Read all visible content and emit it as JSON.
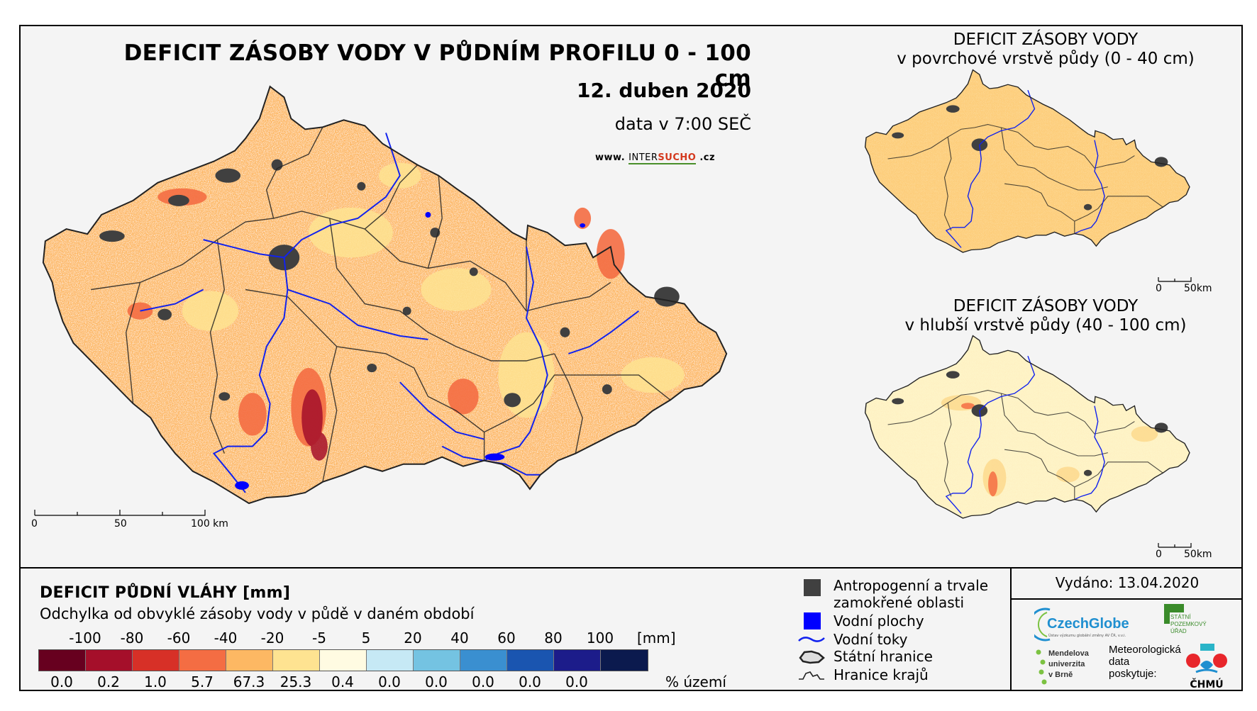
{
  "main_map": {
    "title": "DEFICIT ZÁSOBY VODY V PŮDNÍM PROFILU 0 - 100 cm",
    "date": "12. duben 2020",
    "data_time": "data v 7:00 SEČ",
    "website_prefix": "www. ",
    "website_brand_a": "INTER",
    "website_brand_b": "SUCHO",
    "website_suffix": " .cz",
    "scale_labels": [
      "0",
      "50",
      "100 km"
    ]
  },
  "inset_top": {
    "title_line1": "DEFICIT ZÁSOBY VODY",
    "title_line2": "v povrchové vrstvě půdy (0 - 40 cm)",
    "scale_labels": [
      "0",
      "50km"
    ]
  },
  "inset_bottom": {
    "title_line1": "DEFICIT ZÁSOBY VODY",
    "title_line2": "v hlubší vrstvě půdy (40 - 100 cm)",
    "scale_labels": [
      "0",
      "50km"
    ]
  },
  "legend": {
    "title": "DEFICIT PŮDNÍ VLÁHY [mm]",
    "subtitle": "Odchylka od obvyklé zásoby vody v půdě v daném období",
    "ticks": [
      "-100",
      "-80",
      "-60",
      "-40",
      "-20",
      "-5",
      "5",
      "20",
      "40",
      "60",
      "80",
      "100"
    ],
    "unit": "[mm]",
    "classes": [
      {
        "color": "#67001f",
        "percent": "0.0"
      },
      {
        "color": "#a50f2a",
        "percent": "0.2"
      },
      {
        "color": "#d73027",
        "percent": "1.0"
      },
      {
        "color": "#f46d43",
        "percent": "5.7"
      },
      {
        "color": "#fdb863",
        "percent": "67.3"
      },
      {
        "color": "#fee391",
        "percent": "25.3"
      },
      {
        "color": "#fffbe2",
        "percent": "0.4"
      },
      {
        "color": "#c6e9f5",
        "percent": "0.0"
      },
      {
        "color": "#74c3e2",
        "percent": "0.0"
      },
      {
        "color": "#3a8fd0",
        "percent": "0.0"
      },
      {
        "color": "#1a55b0",
        "percent": "0.0"
      },
      {
        "color": "#1c1c8a",
        "percent": "0.0"
      },
      {
        "color": "#0b1a4e"
      }
    ],
    "percent_label": "% území"
  },
  "symbols": {
    "urban_line1": "Antropogenní a trvale",
    "urban_line2": "zamokřené oblasti",
    "water_bodies": "Vodní plochy",
    "rivers": "Vodní toky",
    "state_border": "Státní hranice",
    "region_border": "Hranice krajů"
  },
  "info": {
    "issued": "Vydáno: 13.04.2020",
    "czechglobe": "CzechGlobe",
    "czechglobe_sub": "Ústav výzkumu globální změny AV ČR, v.v.i.",
    "spu_lines": [
      "STÁTNÍ",
      "POZEMKOVÝ",
      "ÚŘAD"
    ],
    "mendel_lines": [
      "Mendelova",
      "univerzita",
      "v Brně"
    ],
    "meteo_lines": [
      "Meteorologická",
      "data",
      "poskytuje:"
    ],
    "chmu": "ČHMÚ"
  },
  "colors": {
    "orange": "#fdb863",
    "yellow": "#fee391",
    "cream": "#fffbe2",
    "red": "#d73027",
    "darkred": "#a50f2a",
    "urban": "#404040",
    "water": "#0000ff"
  }
}
